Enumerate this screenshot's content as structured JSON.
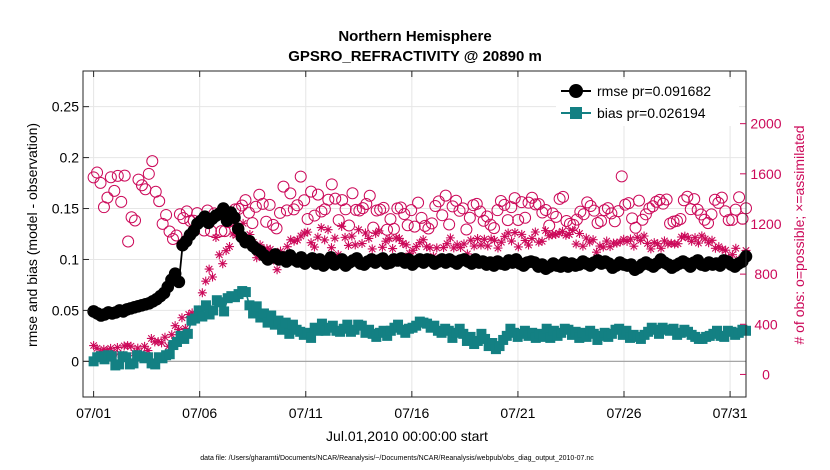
{
  "chart_data": {
    "type": "line",
    "title": "Northern Hemisphere",
    "subtitle": "GPSRO_REFRACTIVITY @ 20890 m",
    "xlabel": "Jul.01,2010 00:00:00 start",
    "ylabel": "rmse and bias (model - observation)",
    "ylabel_right": "# of obs: o=possible; ×=assimilated",
    "xlim": [
      0.5,
      31.75
    ],
    "ylim": [
      -0.035,
      0.285
    ],
    "ylim_right": [
      -180,
      2420
    ],
    "x_ticks": [
      1,
      6,
      11,
      16,
      21,
      26,
      31
    ],
    "x_tick_labels": [
      "07/01",
      "07/06",
      "07/11",
      "07/16",
      "07/21",
      "07/26",
      "07/31"
    ],
    "y_ticks": [
      0,
      0.05,
      0.1,
      0.15,
      0.2,
      0.25
    ],
    "y_tick_labels": [
      "0",
      "0.05",
      "0.1",
      "0.15",
      "0.2",
      "0.25"
    ],
    "y_right_ticks": [
      0,
      400,
      800,
      1200,
      1600,
      2000
    ],
    "y_right_tick_labels": [
      "0",
      "400",
      "800",
      "1200",
      "1600",
      "2000"
    ],
    "grid": true,
    "legend_position": "top-right",
    "colors": {
      "rmse": "#000000",
      "bias": "#138083",
      "counts": "#cc0a5a",
      "zero_line": "#a6a6a6"
    },
    "footnote": "data file: /Users/gharamti/Documents/NCAR/Reanalysis/~/Documents/NCAR/Reanalysis/webpub/obs_diag_output_2010-07.nc",
    "series": [
      {
        "name": "rmse pr=0.091682",
        "axis": "left",
        "marker": "filled-circle",
        "values": [
          0.049,
          0.047,
          0.045,
          0.046,
          0.048,
          0.047,
          0.048,
          0.05,
          0.049,
          0.051,
          0.052,
          0.053,
          0.054,
          0.055,
          0.056,
          0.057,
          0.059,
          0.061,
          0.064,
          0.067,
          0.073,
          0.08,
          0.086,
          0.078,
          0.114,
          0.118,
          0.124,
          0.128,
          0.135,
          0.138,
          0.142,
          0.136,
          0.14,
          0.143,
          0.145,
          0.15,
          0.138,
          0.146,
          0.141,
          0.13,
          0.122,
          0.117,
          0.118,
          0.113,
          0.11,
          0.108,
          0.104,
          0.1,
          0.102,
          0.105,
          0.1,
          0.102,
          0.098,
          0.104,
          0.1,
          0.098,
          0.102,
          0.096,
          0.099,
          0.101,
          0.096,
          0.1,
          0.094,
          0.097,
          0.102,
          0.095,
          0.098,
          0.1,
          0.094,
          0.097,
          0.099,
          0.101,
          0.096,
          0.095,
          0.098,
          0.1,
          0.097,
          0.099,
          0.101,
          0.096,
          0.097,
          0.1,
          0.099,
          0.101,
          0.097,
          0.1,
          0.095,
          0.098,
          0.1,
          0.097,
          0.1,
          0.099,
          0.096,
          0.098,
          0.1,
          0.097,
          0.1,
          0.098,
          0.096,
          0.099,
          0.1,
          0.098,
          0.096,
          0.1,
          0.097,
          0.098,
          0.095,
          0.097,
          0.094,
          0.098,
          0.096,
          0.095,
          0.099,
          0.097,
          0.1,
          0.096,
          0.094,
          0.097,
          0.098,
          0.097,
          0.093,
          0.095,
          0.091,
          0.093,
          0.096,
          0.094,
          0.093,
          0.097,
          0.093,
          0.096,
          0.094,
          0.095,
          0.098,
          0.096,
          0.094,
          0.097,
          0.099,
          0.096,
          0.098,
          0.096,
          0.092,
          0.094,
          0.097,
          0.095,
          0.094,
          0.095,
          0.09,
          0.092,
          0.095,
          0.097,
          0.095,
          0.093,
          0.096,
          0.1,
          0.097,
          0.095,
          0.092,
          0.094,
          0.096,
          0.098,
          0.096,
          0.093,
          0.097,
          0.099,
          0.095,
          0.094,
          0.097,
          0.095,
          0.096,
          0.094,
          0.099,
          0.098,
          0.095,
          0.093,
          0.096,
          0.098,
          0.103
        ]
      },
      {
        "name": "bias pr=0.026194",
        "axis": "left",
        "marker": "filled-square",
        "values": [
          0.0,
          0.004,
          0.005,
          0.002,
          0.006,
          0.005,
          -0.004,
          -0.003,
          0.005,
          0.004,
          -0.003,
          -0.002,
          0.006,
          0.005,
          0.003,
          0.004,
          -0.002,
          -0.003,
          0.004,
          0.003,
          0.006,
          0.007,
          0.016,
          0.019,
          0.025,
          0.022,
          0.027,
          0.04,
          0.042,
          0.05,
          0.044,
          0.055,
          0.046,
          0.05,
          0.06,
          0.058,
          0.049,
          0.062,
          0.064,
          0.063,
          0.066,
          0.069,
          0.068,
          0.055,
          0.047,
          0.054,
          0.043,
          0.047,
          0.038,
          0.045,
          0.036,
          0.04,
          0.031,
          0.038,
          0.027,
          0.036,
          0.031,
          0.029,
          0.026,
          0.028,
          0.023,
          0.033,
          0.03,
          0.037,
          0.03,
          0.033,
          0.035,
          0.03,
          0.029,
          0.032,
          0.036,
          0.029,
          0.031,
          0.036,
          0.035,
          0.028,
          0.031,
          0.027,
          0.024,
          0.028,
          0.03,
          0.025,
          0.03,
          0.033,
          0.036,
          0.031,
          0.028,
          0.032,
          0.033,
          0.035,
          0.039,
          0.038,
          0.037,
          0.033,
          0.035,
          0.03,
          0.028,
          0.032,
          0.03,
          0.023,
          0.028,
          0.032,
          0.027,
          0.02,
          0.024,
          0.017,
          0.02,
          0.027,
          0.022,
          0.015,
          0.018,
          0.012,
          0.015,
          0.021,
          0.025,
          0.032,
          0.028,
          0.024,
          0.027,
          0.03,
          0.025,
          0.028,
          0.023,
          0.027,
          0.024,
          0.032,
          0.023,
          0.03,
          0.025,
          0.028,
          0.032,
          0.031,
          0.026,
          0.029,
          0.023,
          0.028,
          0.024,
          0.03,
          0.027,
          0.021,
          0.025,
          0.028,
          0.024,
          0.027,
          0.031,
          0.032,
          0.026,
          0.03,
          0.023,
          0.026,
          0.024,
          0.022,
          0.026,
          0.029,
          0.033,
          0.031,
          0.027,
          0.033,
          0.031,
          0.03,
          0.032,
          0.026,
          0.028,
          0.031,
          0.029,
          0.026,
          0.024,
          0.022,
          0.022,
          0.024,
          0.025,
          0.027,
          0.03,
          0.025,
          0.024,
          0.03,
          0.029,
          0.026,
          0.028,
          0.031,
          0.03
        ]
      },
      {
        "name": "possible",
        "axis": "right",
        "marker": "open-circle",
        "values": [
          1572,
          1610,
          1528,
          1334,
          1410,
          1573,
          1464,
          1584,
          1376,
          1586,
          1060,
          1254,
          1228,
          1554,
          1509,
          1477,
          1600,
          1701,
          1457,
          1382,
          1201,
          1272,
          1140,
          1080,
          1108,
          1278,
          1247,
          1300,
          1225,
          1226,
          1286,
          1224,
          1148,
          1307,
          1144,
          1284,
          1273,
          1143,
          1143,
          1216,
          1227,
          1316,
          1320,
          1347,
          1390,
          1290,
          1207,
          1337,
          1433,
          1360,
          1218,
          1352,
          1193,
          1165,
          1288,
          1498,
          1308,
          1444,
          1316,
          1349,
          1578,
          1389,
          1240,
          1458,
          1267,
          1434,
          1299,
          1317,
          1393,
          1516,
          1402,
          1231,
          1390,
          1317,
          1188,
          1445,
          1312,
          1307,
          1326,
          1359,
          1425,
          1171,
          1307,
          1314,
          1328,
          1154,
          1239,
          1161,
          1324,
          1331,
          1279,
          1190,
          1310,
          1179,
          1370,
          1249,
          1185,
          1164,
          1205,
          1343,
          1380,
          1270,
          1426,
          1196,
          1340,
          1385,
          1305,
          1324,
          1156,
          1250,
          1350,
          1360,
          1298,
          1226,
          1260,
          1194,
          1167,
          1310,
          1383,
          1352,
          1231,
          1334,
          1406,
          1232,
          1374,
          1250,
          1370,
          1409,
          1356,
          1358,
          1291,
          1311,
          1187,
          1284,
          1257,
          1400,
          1416,
          1224,
          1201,
          1193,
          1235,
          1298,
          1278,
          1372,
          1343,
          1306,
          1208,
          1224,
          1310,
          1326,
          1284,
          1222,
          1302,
          1580,
          1354,
          1366,
          1245,
          1170,
          1386,
          1234,
          1277,
          1324,
          1341,
          1377,
          1392,
          1362,
          1395,
          1204,
          1219,
          1225,
          1240,
          1389,
          1417,
          1318,
          1398,
          1313,
          1276,
          1234,
          1207,
          1277,
          1393,
          1368,
          1410,
          1301,
          1231,
          1233,
          1314,
          1413,
          1242,
          1325
        ]
      },
      {
        "name": "assimilated",
        "axis": "right",
        "marker": "asterisk",
        "values": [
          230,
          208,
          180,
          200,
          188,
          208,
          170,
          215,
          160,
          227,
          230,
          225,
          171,
          210,
          165,
          224,
          190,
          287,
          260,
          262,
          252,
          297,
          224,
          317,
          389,
          358,
          452,
          367,
          478,
          491,
          452,
          515,
          651,
          744,
          840,
          777,
          1092,
          954,
          883,
          987,
          1020,
          1120,
          1110,
          1159,
          1205,
          1085,
          1116,
          1054,
          931,
          1034,
          960,
          1003,
          998,
          913,
          835,
          983,
          915,
          1019,
          1074,
          1063,
          1072,
          1104,
          1128,
          1135,
          1051,
          1016,
          1095,
          1171,
          1073,
          1154,
          1011,
          1087,
          956,
          1181,
          1093,
          1029,
          1103,
          1033,
          1154,
          1044,
          1128,
          1085,
          1001,
          1125,
          1145,
          1014,
          1063,
          1083,
          1004,
          1088,
          1085,
          1045,
          1034,
          966,
          990,
          1020,
          1051,
          1075,
          1018,
          1011,
          943,
          1009,
          929,
          1012,
          1043,
          1089,
          1009,
          1034,
          1012,
          1041,
          961,
          1071,
          1024,
          1084,
          1032,
          1078,
          1024,
          1081,
          1070,
          1008,
          1055,
          1101,
          1128,
          1064,
          1132,
          1017,
          1117,
          1069,
          1032,
          1085,
          1136,
          1055,
          1062,
          1147,
          1106,
          1114,
          1116,
          1126,
          1141,
          1110,
          1116,
          1148,
          1040,
          1124,
          1023,
          1088,
          1056,
          1075,
          975,
          1024,
          1016,
          1064,
          1019,
          1047,
          1047,
          1056,
          1078,
          1061,
          1080,
          1023,
          1093,
          1070,
          1104,
          1045,
          1001,
          1051,
          1043,
          1006,
          1065,
          1042,
          1045,
          1040,
          1043,
          1096,
          1103,
          1089,
          1062,
          1091,
          1048,
          1105,
          1081,
          1050,
          1070,
          1006,
          1019,
          998,
          991,
          931,
          955,
          1006,
          917,
          931,
          989
        ]
      }
    ]
  }
}
